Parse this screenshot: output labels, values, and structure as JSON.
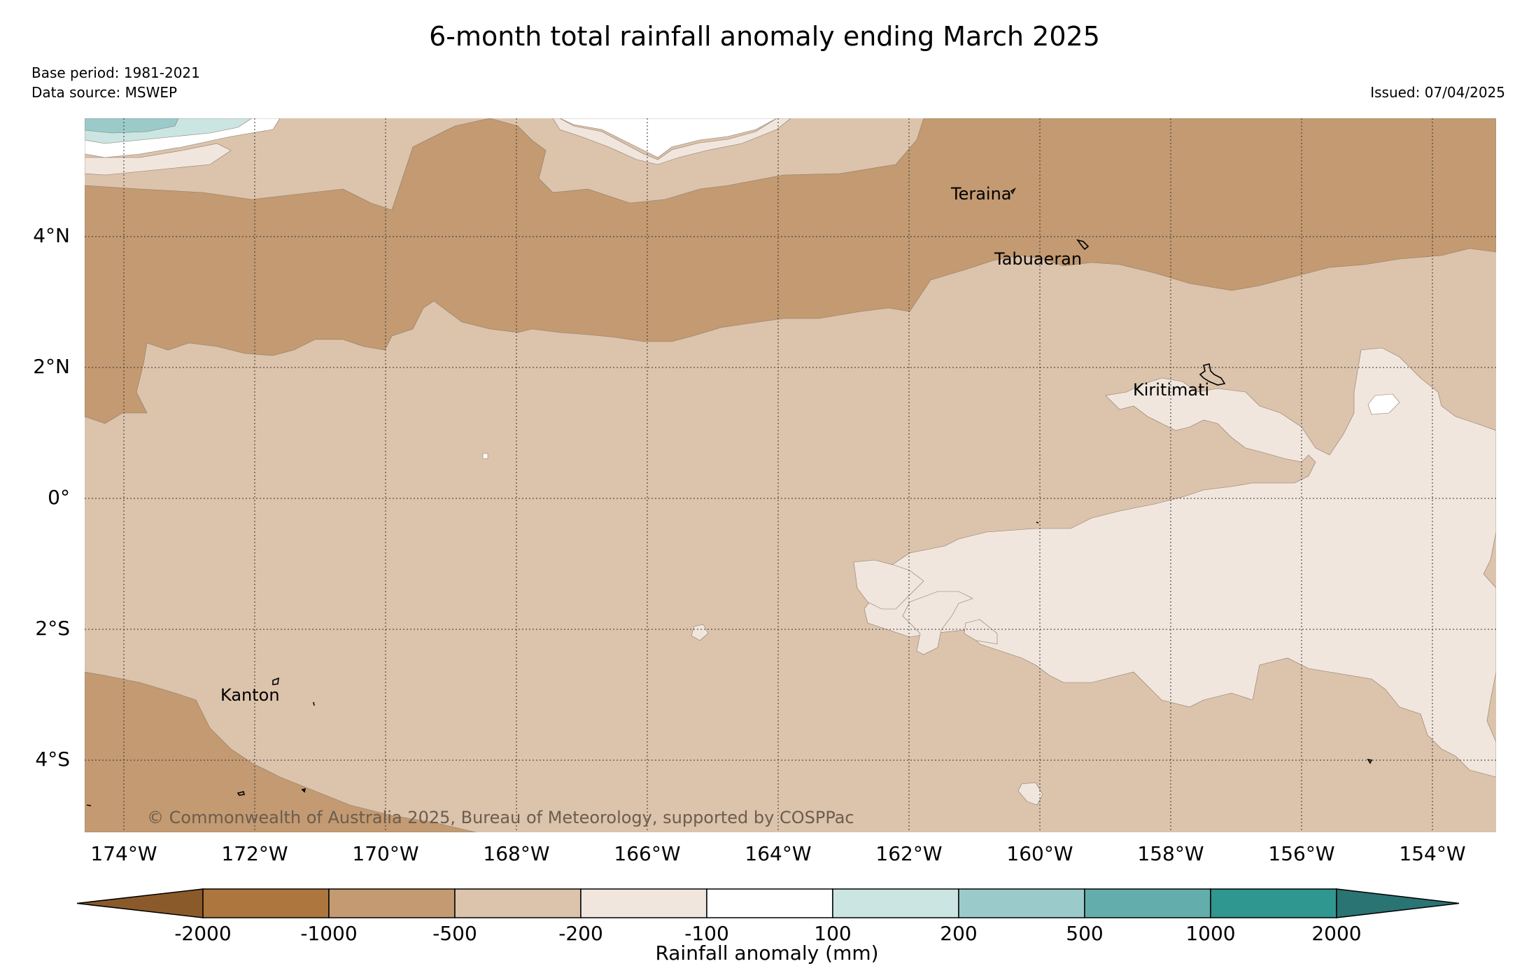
{
  "title": "6-month total rainfall anomaly ending March 2025",
  "meta": {
    "base_period": "Base period: 1981-2021",
    "data_source": "Data source: MSWEP",
    "issued": "Issued: 07/04/2025"
  },
  "map": {
    "lat_labels": [
      "4°N",
      "2°N",
      "0°",
      "2°S",
      "4°S"
    ],
    "lon_labels": [
      "174°W",
      "172°W",
      "170°W",
      "168°W",
      "166°W",
      "164°W",
      "162°W",
      "160°W",
      "158°W",
      "156°W",
      "154°W"
    ],
    "places": [
      "Teraina",
      "Tabuaeran",
      "Kiritimati",
      "Kanton"
    ],
    "copyright": "© Commonwealth of Australia 2025, Bureau of Meteorology, supported by COSPPac",
    "colors": {
      "lt_-1000": "#c39a71",
      "-500_-200": "#dcc3ab",
      "-200_-100": "#f0e6dd",
      "-100_100": "#ffffff",
      "100_200": "#cbe5e2",
      "200_500": "#9acbca"
    }
  },
  "colorbar": {
    "title": "Rainfall anomaly (mm)",
    "ticks": [
      "-2000",
      "-1000",
      "-500",
      "-200",
      "-100",
      "100",
      "200",
      "500",
      "1000",
      "2000"
    ],
    "colors": [
      "#8b5a2b",
      "#ad763f",
      "#c39a71",
      "#dcc3ab",
      "#f0e6dd",
      "#ffffff",
      "#cbe5e2",
      "#9acbca",
      "#63aeac",
      "#2f9690",
      "#2a7473"
    ]
  }
}
